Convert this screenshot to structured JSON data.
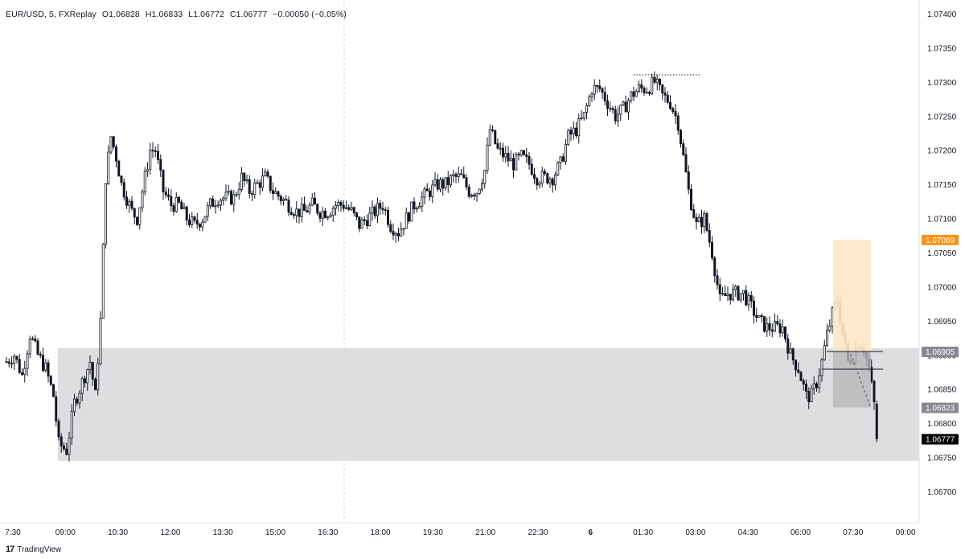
{
  "header": {
    "symbol": "EUR/USD, 5, FXReplay",
    "open": "O1.06828",
    "high": "H1.06833",
    "low": "L1.06772",
    "close": "C1.06777",
    "change": "−0.00050 (−0.05%)"
  },
  "footer": {
    "brand": "TradingView",
    "logo": "17"
  },
  "colors": {
    "candle": "#131722",
    "zone": "#dcdcde",
    "position_profit": "#fde8c8",
    "position_loss": "#b8b8bc",
    "price_tag_orange": "#f7931a",
    "price_tag_gray": "#868993",
    "price_tag_black": "#000000",
    "axis_text": "#131722"
  },
  "chart_data": {
    "type": "candlestick",
    "title": "EUR/USD, 5, FXReplay",
    "ylim": [
      1.0665,
      1.0742
    ],
    "y_ticks": [
      "1.07400",
      "1.07350",
      "1.07300",
      "1.07250",
      "1.07200",
      "1.07150",
      "1.07100",
      "1.07050",
      "1.07000",
      "1.06950",
      "1.06900",
      "1.06850",
      "1.06800",
      "1.06750",
      "1.06700"
    ],
    "x_ticks": [
      "7:30",
      "09:00",
      "10:30",
      "12:00",
      "13:30",
      "15:00",
      "16:30",
      "18:00",
      "19:30",
      "21:00",
      "22:30",
      "6",
      "01:30",
      "03:00",
      "04:30",
      "06:00",
      "07:30",
      "09:00"
    ],
    "price_tags": [
      {
        "label": "1.07069",
        "value": 1.07069,
        "style": "orange"
      },
      {
        "label": "1.06905",
        "value": 1.06905,
        "style": "gray"
      },
      {
        "label": "1.06823",
        "value": 1.06823,
        "style": "gray"
      },
      {
        "label": "1.06777",
        "value": 1.06777,
        "style": "black"
      }
    ],
    "zone": {
      "from_time": "09:00",
      "to_time": "09:00",
      "top": 1.0691,
      "bottom": 1.06745
    },
    "position": {
      "entry": 1.06905,
      "target": 1.07069,
      "stop": 1.06823
    },
    "ohlc_last": {
      "open": 1.06828,
      "high": 1.06833,
      "low": 1.06772,
      "close": 1.06777
    },
    "path": [
      [
        0,
        1.0689
      ],
      [
        3,
        1.069
      ],
      [
        6,
        1.0687
      ],
      [
        9,
        1.0693
      ],
      [
        12,
        1.069
      ],
      [
        15,
        1.0688
      ],
      [
        18,
        1.0684
      ],
      [
        20,
        1.0677
      ],
      [
        23,
        1.0676
      ],
      [
        26,
        1.0683
      ],
      [
        29,
        1.0686
      ],
      [
        32,
        1.0689
      ],
      [
        34,
        1.0684
      ],
      [
        36,
        1.0695
      ],
      [
        38,
        1.0716
      ],
      [
        40,
        1.0722
      ],
      [
        42,
        1.0719
      ],
      [
        44,
        1.0715
      ],
      [
        46,
        1.0713
      ],
      [
        48,
        1.0711
      ],
      [
        50,
        1.071
      ],
      [
        52,
        1.0714
      ],
      [
        55,
        1.072
      ],
      [
        57,
        1.072
      ],
      [
        60,
        1.0714
      ],
      [
        63,
        1.0712
      ],
      [
        66,
        1.0712
      ],
      [
        69,
        1.071
      ],
      [
        72,
        1.0709
      ],
      [
        75,
        1.071
      ],
      [
        78,
        1.0712
      ],
      [
        81,
        1.0713
      ],
      [
        84,
        1.0713
      ],
      [
        87,
        1.0713
      ],
      [
        90,
        1.0716
      ],
      [
        93,
        1.0714
      ],
      [
        96,
        1.0715
      ],
      [
        99,
        1.0716
      ],
      [
        102,
        1.0714
      ],
      [
        105,
        1.0713
      ],
      [
        108,
        1.0712
      ],
      [
        111,
        1.0711
      ],
      [
        114,
        1.0711
      ],
      [
        117,
        1.0712
      ],
      [
        120,
        1.0711
      ],
      [
        123,
        1.0711
      ],
      [
        126,
        1.0712
      ],
      [
        129,
        1.0712
      ],
      [
        132,
        1.0711
      ],
      [
        135,
        1.0709
      ],
      [
        138,
        1.071
      ],
      [
        141,
        1.0711
      ],
      [
        144,
        1.0712
      ],
      [
        147,
        1.0709
      ],
      [
        150,
        1.0708
      ],
      [
        153,
        1.071
      ],
      [
        156,
        1.0712
      ],
      [
        159,
        1.0713
      ],
      [
        162,
        1.0714
      ],
      [
        165,
        1.0715
      ],
      [
        168,
        1.0715
      ],
      [
        171,
        1.0716
      ],
      [
        174,
        1.0716
      ],
      [
        177,
        1.0714
      ],
      [
        180,
        1.0714
      ],
      [
        183,
        1.0717
      ],
      [
        185,
        1.0723
      ],
      [
        188,
        1.072
      ],
      [
        191,
        1.0719
      ],
      [
        194,
        1.0718
      ],
      [
        197,
        1.0719
      ],
      [
        200,
        1.0718
      ],
      [
        203,
        1.0716
      ],
      [
        206,
        1.0716
      ],
      [
        209,
        1.0716
      ],
      [
        212,
        1.0718
      ],
      [
        215,
        1.0722
      ],
      [
        218,
        1.0723
      ],
      [
        221,
        1.0725
      ],
      [
        224,
        1.0729
      ],
      [
        227,
        1.0729
      ],
      [
        230,
        1.0727
      ],
      [
        233,
        1.0725
      ],
      [
        236,
        1.0726
      ],
      [
        239,
        1.0728
      ],
      [
        242,
        1.0729
      ],
      [
        245,
        1.0729
      ],
      [
        248,
        1.073
      ],
      [
        251,
        1.0728
      ],
      [
        254,
        1.0727
      ],
      [
        257,
        1.0724
      ],
      [
        259,
        1.0719
      ],
      [
        261,
        1.0714
      ],
      [
        264,
        1.0709
      ],
      [
        267,
        1.071
      ],
      [
        270,
        1.0705
      ],
      [
        273,
        1.0698
      ],
      [
        276,
        1.0699
      ],
      [
        279,
        1.0699
      ],
      [
        282,
        1.0699
      ],
      [
        285,
        1.0697
      ],
      [
        288,
        1.0695
      ],
      [
        291,
        1.0694
      ],
      [
        294,
        1.0694
      ],
      [
        297,
        1.0694
      ],
      [
        300,
        1.069
      ],
      [
        303,
        1.0688
      ],
      [
        306,
        1.0684
      ],
      [
        308,
        1.0684
      ],
      [
        310,
        1.0686
      ],
      [
        312,
        1.0689
      ],
      [
        314,
        1.0693
      ],
      [
        316,
        1.0696
      ],
      [
        318,
        1.0698
      ],
      [
        320,
        1.0693
      ],
      [
        322,
        1.0689
      ],
      [
        324,
        1.069
      ],
      [
        326,
        1.0692
      ],
      [
        328,
        1.0691
      ],
      [
        330,
        1.0688
      ],
      [
        332,
        1.06828
      ],
      [
        333,
        1.06777
      ]
    ]
  }
}
